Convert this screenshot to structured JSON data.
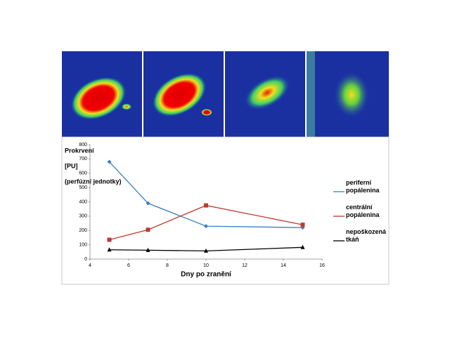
{
  "chart_data": {
    "type": "line",
    "y_label": [
      "Prokrvení",
      "[PU]",
      "(perfúzní jednotky)"
    ],
    "x_label": "Dny po zranění",
    "xlim": [
      4,
      16
    ],
    "xticks": [
      4,
      6,
      8,
      10,
      12,
      14,
      16
    ],
    "ylim": [
      0,
      800
    ],
    "yticks": [
      0,
      100,
      200,
      300,
      400,
      500,
      600,
      700,
      800
    ],
    "grid": false,
    "legend": "right",
    "series": [
      {
        "name": "periferní popálenina",
        "color": "#3b7fc4",
        "marker": "diamond",
        "x": [
          5,
          7,
          10,
          15
        ],
        "values": [
          680,
          390,
          230,
          220
        ]
      },
      {
        "name": "centrální popálenina",
        "color": "#c0392b",
        "marker": "square",
        "x": [
          5,
          7,
          10,
          15
        ],
        "values": [
          135,
          205,
          375,
          240
        ]
      },
      {
        "name": "nepoškozená tkáň",
        "color": "#000000",
        "marker": "triangle",
        "x": [
          5,
          7,
          10,
          15
        ],
        "values": [
          65,
          62,
          57,
          82
        ]
      }
    ]
  }
}
